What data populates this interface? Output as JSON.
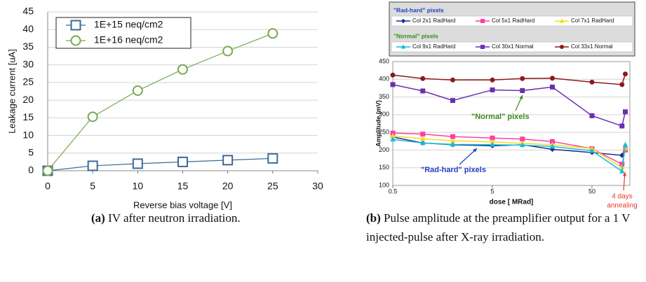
{
  "chart_data": [
    {
      "type": "line",
      "x_label": "Reverse bias voltage [V]",
      "y_label": "Leakage current [uA]",
      "x": [
        0,
        5,
        10,
        15,
        20,
        25
      ],
      "series": [
        {
          "name": "1E+15 neq/cm2",
          "color": "#3c6a96",
          "marker": "square",
          "values": [
            0,
            1.4,
            2.0,
            2.5,
            3.0,
            3.5
          ]
        },
        {
          "name": "1E+16 neq/cm2",
          "color": "#77a84e",
          "marker": "circle",
          "values": [
            0,
            15.3,
            22.7,
            28.7,
            33.9,
            38.9
          ]
        }
      ],
      "xlim": [
        0,
        30
      ],
      "xticks": [
        0,
        5,
        10,
        15,
        20,
        25,
        30
      ],
      "ylim": [
        0,
        45
      ],
      "yticks": [
        0,
        5,
        10,
        15,
        20,
        25,
        30,
        35,
        40,
        45
      ],
      "grid": true,
      "legend": "upper left"
    },
    {
      "type": "line",
      "x_label": "dose [ MRad]",
      "y_label": "Amplitude (mV)",
      "xlog": true,
      "x": [
        0.5,
        1,
        2,
        5,
        10,
        20,
        50,
        100,
        108
      ],
      "legend_groups": [
        {
          "text": "\"Rad-hard\" pixels",
          "color": "#1f3fbf"
        },
        {
          "text": "\"Normal\" pixels",
          "color": "#3a8a1a"
        }
      ],
      "series": [
        {
          "name": "Col 2x1 RadHard",
          "color": "#1a2f8c",
          "marker": "diamond",
          "values": [
            237,
            220,
            215,
            212,
            215,
            202,
            193,
            185,
            205
          ]
        },
        {
          "name": "Col 5x1 RadHard",
          "color": "#ff3fa0",
          "marker": "square",
          "values": [
            248,
            245,
            238,
            234,
            231,
            224,
            204,
            160,
            200
          ]
        },
        {
          "name": "Col 7x1 RadHard",
          "color": "#f0e020",
          "marker": "triangle",
          "values": [
            240,
            232,
            226,
            223,
            219,
            215,
            204,
            150,
            205
          ]
        },
        {
          "name": "Col 9x1 RadHard",
          "color": "#1ab8e0",
          "marker": "triangle",
          "values": [
            230,
            220,
            216,
            215,
            214,
            210,
            198,
            140,
            215
          ]
        },
        {
          "name": "Col 30x1 Normal",
          "color": "#6a2fb0",
          "marker": "square",
          "values": [
            385,
            367,
            340,
            370,
            368,
            378,
            297,
            268,
            308
          ]
        },
        {
          "name": "Col 33x1 Normal",
          "color": "#8c1a1a",
          "marker": "circle",
          "values": [
            412,
            402,
            398,
            398,
            402,
            403,
            392,
            385,
            415
          ]
        }
      ],
      "xlim": [
        0.5,
        120
      ],
      "xticks": [
        0.5,
        5,
        50
      ],
      "ylim": [
        100,
        450
      ],
      "yticks": [
        100,
        150,
        200,
        250,
        300,
        350,
        400,
        450
      ],
      "grid": true,
      "annotations": [
        {
          "lines": [
            "\"Normal\" pixels"
          ],
          "color": "#3a8a1a"
        },
        {
          "lines": [
            "\"Rad-hard\" pixels"
          ],
          "color": "#1f3fbf"
        },
        {
          "lines": [
            "4 days",
            "annealing"
          ],
          "color": "#e83a2a"
        }
      ]
    }
  ],
  "captions": [
    {
      "label": "(a)",
      "text": "IV after neutron irradiation."
    },
    {
      "label": "(b)",
      "text": "Pulse amplitude at the preamplifier output for a 1 V injected-pulse after X-ray irradiation."
    }
  ]
}
